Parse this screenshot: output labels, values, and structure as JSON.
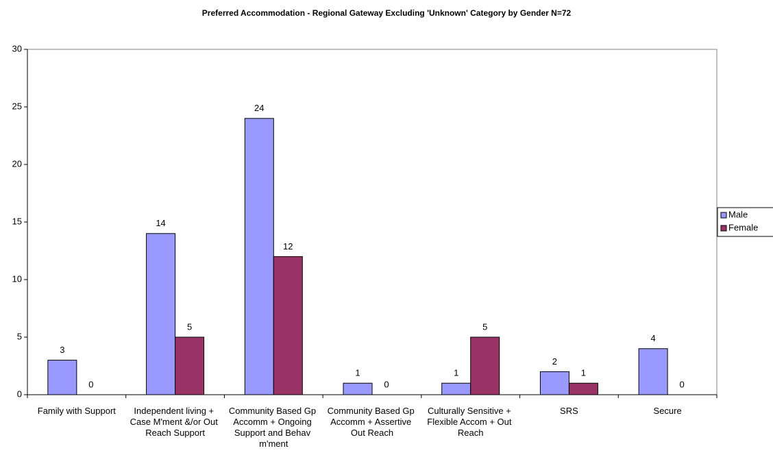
{
  "chart_data": {
    "type": "bar",
    "title": "Preferred Accommodation - Regional Gateway Excluding 'Unknown' Category by Gender N=72",
    "categories": [
      "Family with Support",
      "Independent living + Case M'ment &/or Out Reach Support",
      "Community Based Gp Accomm + Ongoing Support and Behav m'ment",
      "Community Based Gp Accomm + Assertive Out Reach",
      "Culturally Sensitive + Flexible Accom + Out Reach",
      "SRS",
      "Secure"
    ],
    "series": [
      {
        "name": "Male",
        "color": "#9999ff",
        "values": [
          3,
          14,
          24,
          1,
          1,
          2,
          4
        ]
      },
      {
        "name": "Female",
        "color": "#993366",
        "values": [
          0,
          5,
          12,
          0,
          5,
          1,
          0
        ]
      }
    ],
    "ylim": [
      0,
      30
    ],
    "yticks": [
      0,
      5,
      10,
      15,
      20,
      25,
      30
    ],
    "grid": false,
    "legend": "right"
  }
}
